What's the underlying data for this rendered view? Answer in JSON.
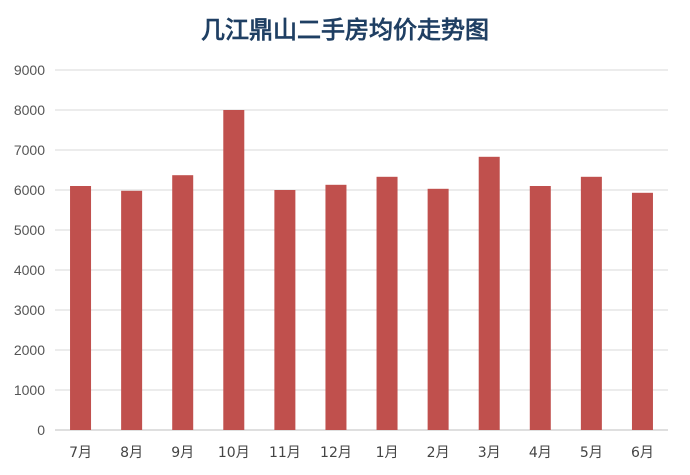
{
  "colors": {
    "bar": "#c0504d",
    "title": "#1f3f63",
    "grid": "#d9d9d9",
    "axis": "#bfbfbf"
  },
  "chart_data": {
    "type": "bar",
    "title": "几江鼎山二手房均价走势图",
    "xlabel": "",
    "ylabel": "",
    "ylim": [
      0,
      9000
    ],
    "yticks": [
      0,
      1000,
      2000,
      3000,
      4000,
      5000,
      6000,
      7000,
      8000,
      9000
    ],
    "grid": true,
    "categories": [
      "7月",
      "8月",
      "9月",
      "10月",
      "11月",
      "12月",
      "1月",
      "2月",
      "3月",
      "4月",
      "5月",
      "6月"
    ],
    "values": [
      6100,
      5980,
      6370,
      8000,
      6000,
      6130,
      6330,
      6030,
      6830,
      6100,
      6330,
      5930
    ]
  }
}
